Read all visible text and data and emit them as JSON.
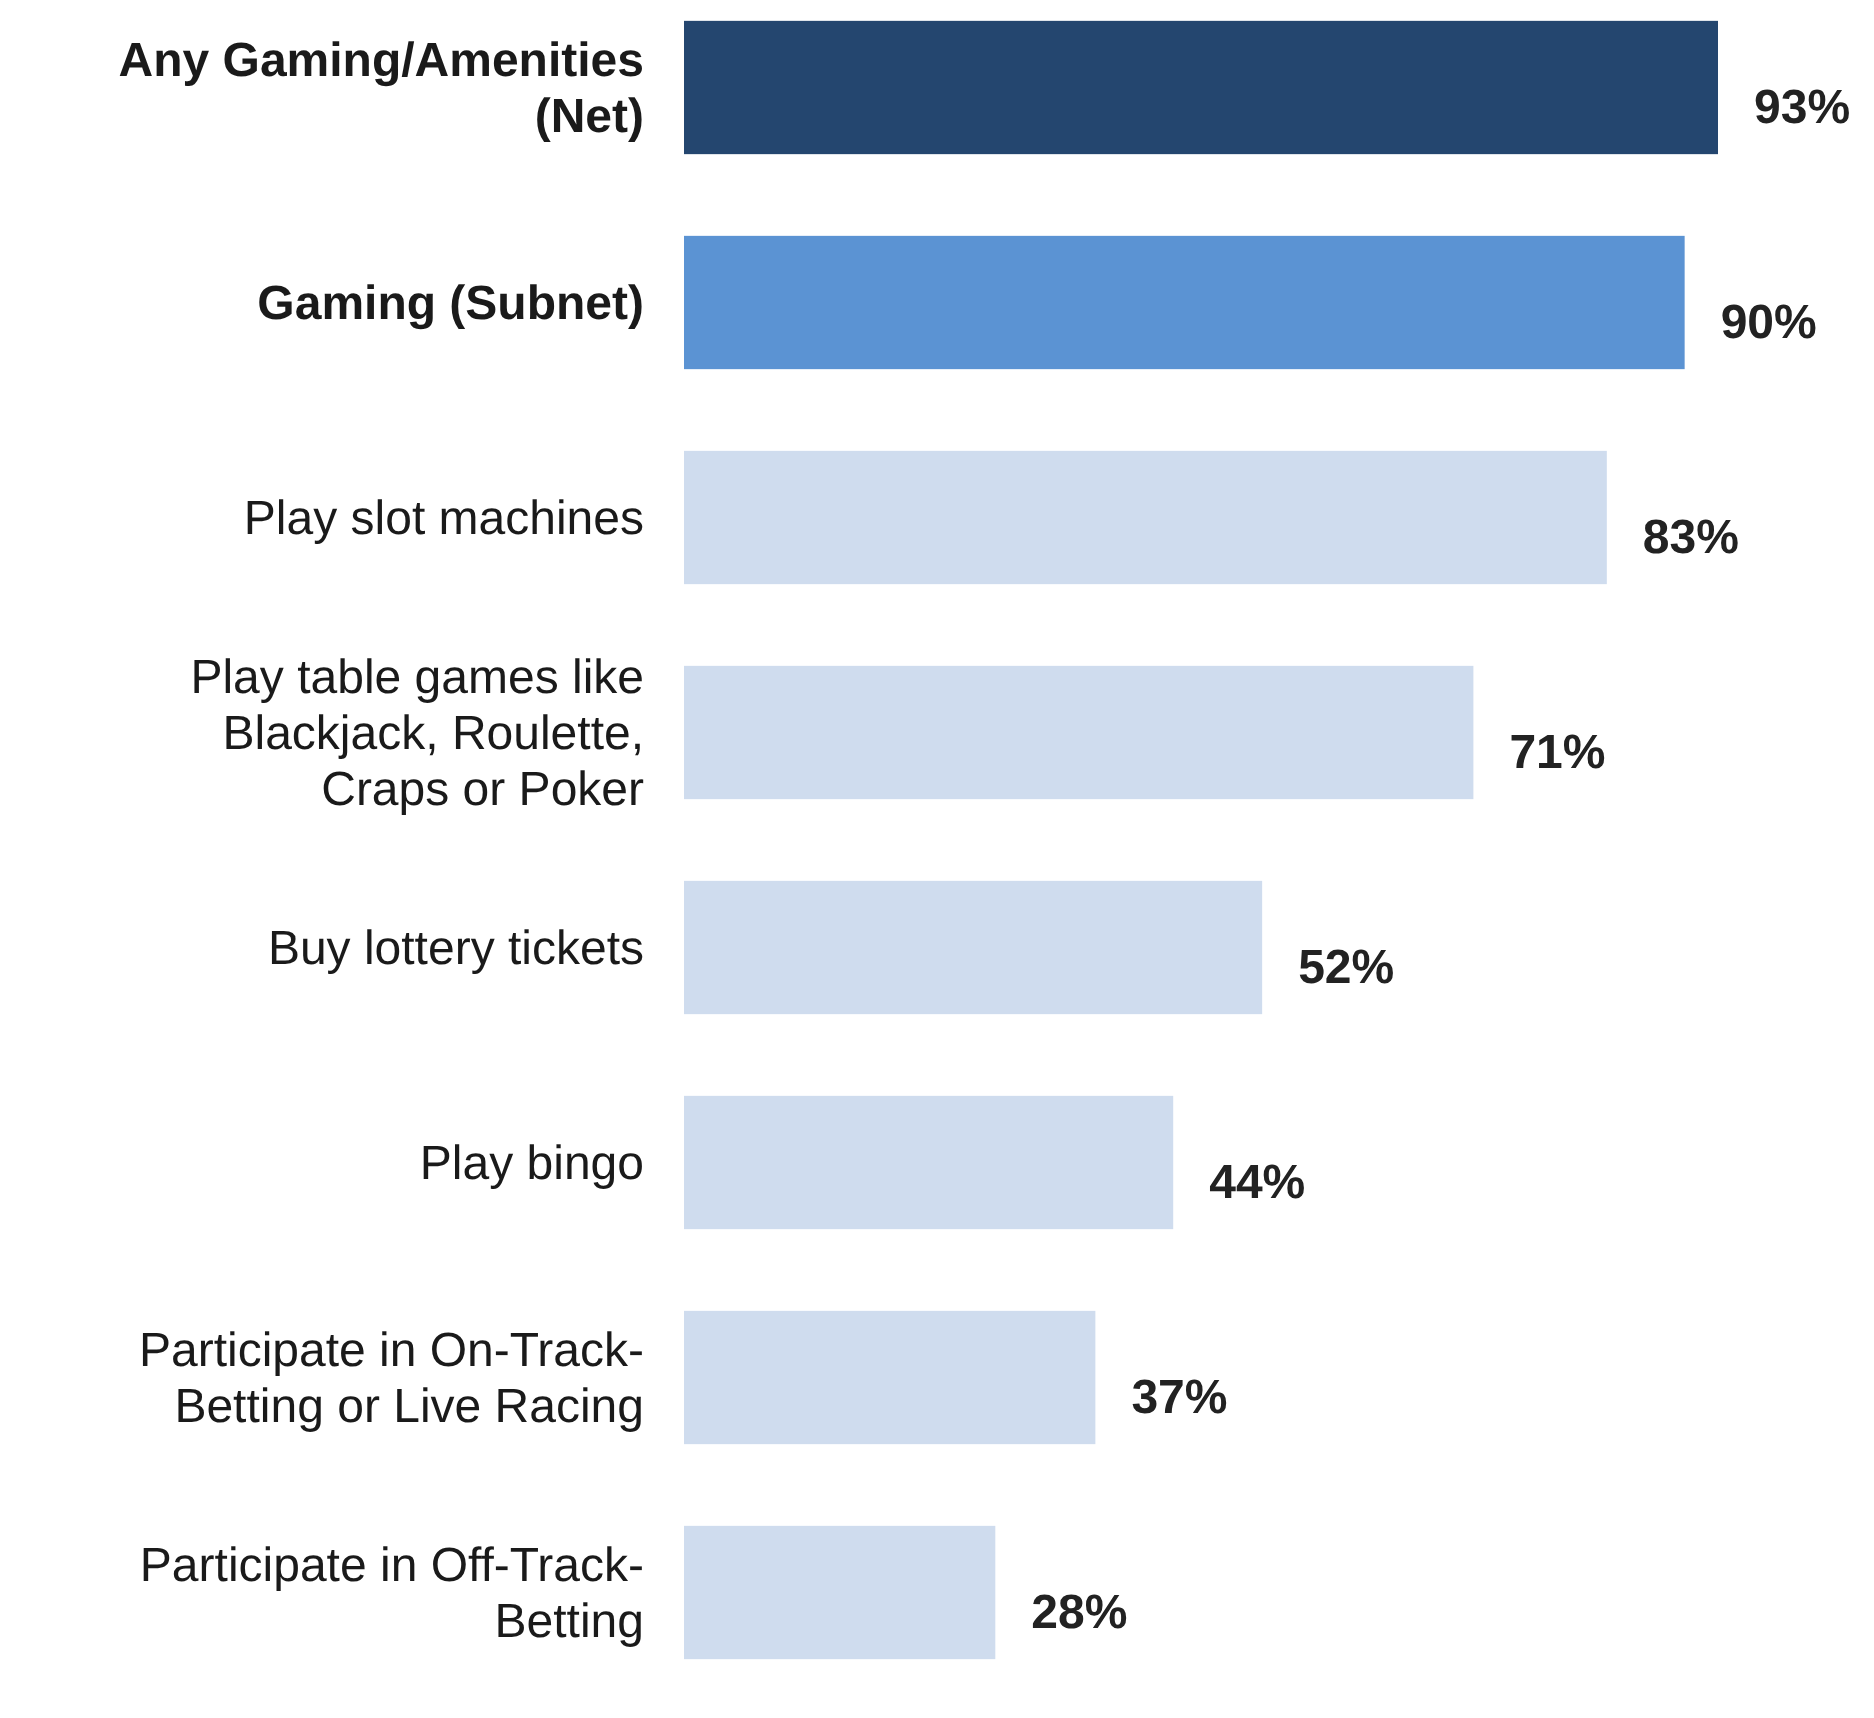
{
  "chart_data": {
    "type": "bar",
    "orientation": "horizontal",
    "categories": [
      "Any Gaming/Amenities (Net)",
      "Gaming (Subnet)",
      "Play slot machines",
      "Play table games like Blackjack, Roulette, Craps or Poker",
      "Buy lottery tickets",
      "Play bingo",
      "Participate in On-Track-Betting or Live Racing",
      "Participate in Off-Track-Betting"
    ],
    "values": [
      93,
      90,
      83,
      71,
      52,
      44,
      37,
      28
    ],
    "colors": [
      "#24466f",
      "#5b93d3",
      "#cfdcee",
      "#cfdcee",
      "#cfdcee",
      "#cfdcee",
      "#cfdcee",
      "#cfdcee"
    ],
    "value_labels": [
      "93%",
      "90%",
      "83%",
      "71%",
      "52%",
      "44%",
      "37%",
      "28%"
    ]
  }
}
